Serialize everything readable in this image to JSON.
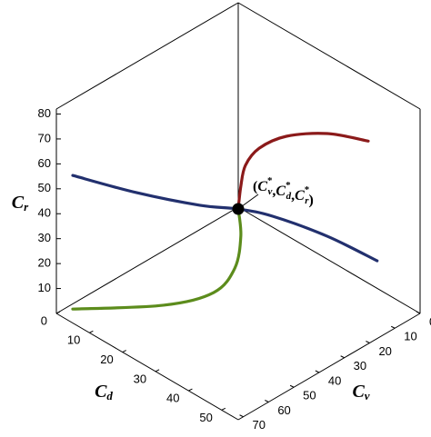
{
  "chart_data": {
    "type": "line3d",
    "xlim": [
      0,
      55
    ],
    "ylim": [
      0,
      72
    ],
    "zlim": [
      0,
      82
    ],
    "xticks": [
      0,
      10,
      20,
      30,
      40,
      50
    ],
    "yticks": [
      0,
      10,
      20,
      30,
      40,
      50,
      60,
      70
    ],
    "zticks": [
      10,
      20,
      30,
      40,
      50,
      60,
      70,
      80
    ],
    "xlabel": {
      "base": "C",
      "sub": "d"
    },
    "ylabel": {
      "base": "C",
      "sub": "v"
    },
    "zlabel": {
      "base": "C",
      "sub": "r"
    },
    "series": [
      {
        "color": "#8b1a1a",
        "x": [
          27.5,
          27.9,
          28.6,
          30.7,
          34.8,
          41.0,
          47.2
        ],
        "y": [
          36,
          35.5,
          34.6,
          31.9,
          26.5,
          18.4,
          10.3
        ],
        "z": [
          41.9,
          51.0,
          59.4,
          66.3,
          71.1,
          72.2,
          69.2
        ]
      },
      {
        "color": "#22306e",
        "x": [
          2.5,
          12.1,
          21.7,
          27.5,
          32.7,
          41.0,
          48.5
        ],
        "y": [
          68.8,
          56.2,
          43.6,
          36,
          29.2,
          18.4,
          8.5
        ],
        "z": [
          55.4,
          48.5,
          43.4,
          41.9,
          39.0,
          31.0,
          21.1
        ]
      },
      {
        "color": "#5c8c1c",
        "x": [
          27.5,
          27.9,
          27.0,
          23.8,
          16.2,
          2.5
        ],
        "y": [
          36,
          35.5,
          36.7,
          40.9,
          50.8,
          68.8
        ],
        "z": [
          41.9,
          31.0,
          18.2,
          8.4,
          3.3,
          1.8
        ]
      }
    ],
    "equilibrium": {
      "x": 27.5,
      "y": 36,
      "z": 41.9,
      "open": "(",
      "separator": ",",
      "close": ")",
      "parts": [
        {
          "base": "C",
          "sub": "v",
          "sup": "*"
        },
        {
          "base": "C",
          "sub": "d",
          "sup": "*"
        },
        {
          "base": "C",
          "sub": "r",
          "sup": "*"
        }
      ]
    }
  }
}
